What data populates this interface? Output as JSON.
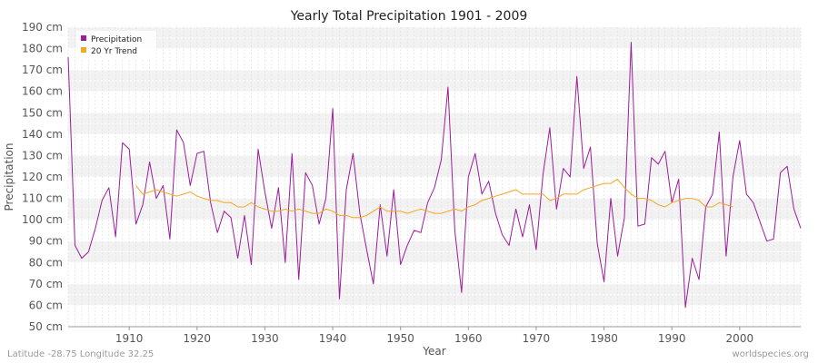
{
  "chart_data": {
    "type": "line",
    "title": "Yearly Total Precipitation 1901 - 2009",
    "xlabel": "Year",
    "ylabel": "Precipitation",
    "x_ticks": [
      1910,
      1920,
      1930,
      1940,
      1950,
      1960,
      1970,
      1980,
      1990,
      2000
    ],
    "xlim": [
      1901,
      2009
    ],
    "ylim": [
      50,
      190
    ],
    "y_ticks": [
      50,
      60,
      70,
      80,
      90,
      100,
      110,
      120,
      130,
      140,
      150,
      160,
      170,
      180,
      190
    ],
    "y_unit": "cm",
    "grid": true,
    "legend_position": "top-left",
    "series": [
      {
        "name": "Precipitation",
        "color": "#9b1d9b",
        "x_start": 1901,
        "values": [
          176,
          88,
          82,
          85,
          96,
          109,
          115,
          92,
          136,
          133,
          98,
          107,
          127,
          110,
          116,
          91,
          142,
          136,
          116,
          131,
          132,
          108,
          94,
          104,
          101,
          82,
          102,
          79,
          133,
          113,
          96,
          115,
          80,
          131,
          72,
          122,
          116,
          98,
          110,
          152,
          63,
          114,
          131,
          103,
          86,
          70,
          107,
          83,
          114,
          79,
          88,
          95,
          94,
          108,
          115,
          128,
          162,
          95,
          66,
          120,
          131,
          112,
          118,
          103,
          93,
          88,
          105,
          92,
          107,
          86,
          121,
          143,
          105,
          124,
          120,
          167,
          124,
          134,
          89,
          71,
          110,
          83,
          101,
          183,
          97,
          98,
          129,
          126,
          132,
          108,
          119,
          59,
          82,
          72,
          106,
          112,
          141,
          83,
          120,
          137,
          112,
          108,
          99,
          90,
          91,
          122,
          125,
          105,
          96
        ]
      },
      {
        "name": "20 Yr Trend",
        "color": "#f5a623",
        "x_start": 1911,
        "values": [
          116,
          112,
          113,
          114,
          113,
          112,
          111,
          112,
          113,
          111,
          110,
          109,
          109,
          108,
          108,
          106,
          106,
          108,
          106,
          105,
          104,
          104,
          105,
          104,
          105,
          104,
          103,
          103,
          105,
          104,
          102,
          102,
          101,
          101,
          102,
          104,
          106,
          104,
          104,
          104,
          103,
          104,
          105,
          104,
          103,
          103,
          104,
          105,
          104,
          106,
          107,
          109,
          110,
          111,
          112,
          113,
          114,
          112,
          112,
          112,
          112,
          109,
          110,
          112,
          112,
          112,
          114,
          115,
          116,
          117,
          117,
          119,
          115,
          112,
          110,
          110,
          109,
          107,
          106,
          108,
          109,
          110,
          110,
          109,
          106,
          106,
          108,
          107,
          106
        ]
      }
    ]
  },
  "footer": {
    "left": "Latitude -28.75 Longitude 32.25",
    "right": "worldspecies.org"
  }
}
